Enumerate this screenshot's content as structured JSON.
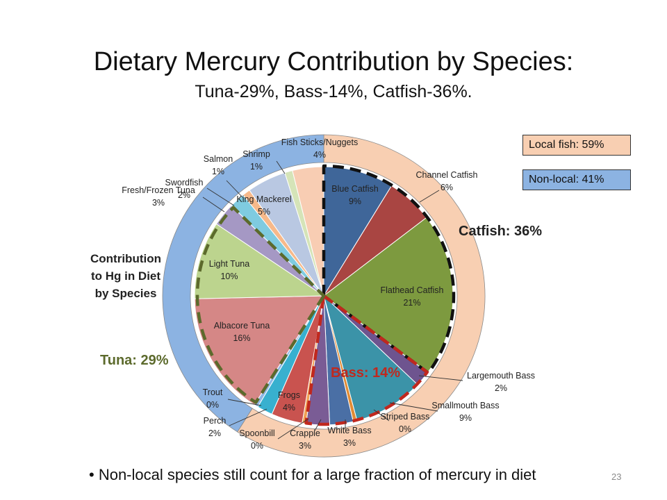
{
  "slide": {
    "title": "Dietary Mercury Contribution by Species:",
    "subtitle": "Tuna-29%, Bass-14%, Catfish-36%.",
    "bullet": "• Non-local species still count for a large fraction of mercury in diet",
    "page_number": "23"
  },
  "legend": {
    "local": "Local fish: 59%",
    "nonlocal": "Non-local: 41%"
  },
  "labels": {
    "side": [
      "Contribution",
      "to Hg in Diet",
      "by Species"
    ],
    "catfish_group": "Catfish: 36%",
    "tuna_group": "Tuna: 29%",
    "bass_group": "Bass: 14%"
  },
  "colors": {
    "local_ring": "#f8cfb2",
    "nonlocal_ring": "#8cb3e2",
    "catfish_outline": "#111111",
    "bass_outline": "#c0281e",
    "tuna_outline": "#5c6a2c"
  },
  "chart_data": {
    "type": "pie",
    "title": "Contribution to Hg in Diet by Species",
    "unit": "%",
    "slices": [
      {
        "name": "Blue Catfish",
        "value": 9,
        "label": "9%",
        "color": "#3f6699",
        "group": "catfish"
      },
      {
        "name": "Channel Catfish",
        "value": 6,
        "label": "6%",
        "color": "#a94542",
        "group": "catfish"
      },
      {
        "name": "Flathead Catfish",
        "value": 21,
        "label": "21%",
        "color": "#7d9a3f",
        "group": "catfish"
      },
      {
        "name": "Largemouth Bass",
        "value": 2,
        "label": "2%",
        "color": "#6e548f",
        "group": "bass"
      },
      {
        "name": "Smallmouth Bass",
        "value": 9,
        "label": "9%",
        "color": "#3b93a8",
        "group": "bass"
      },
      {
        "name": "Striped Bass",
        "value": 0,
        "label": "0%",
        "color": "#e08b35",
        "group": "bass"
      },
      {
        "name": "White Bass",
        "value": 3,
        "label": "3%",
        "color": "#4a6fa5",
        "group": "bass"
      },
      {
        "name": "Crappie",
        "value": 3,
        "label": "3%",
        "color": "#7a5c95",
        "group": "bass"
      },
      {
        "name": "Spoonbill",
        "value": 0,
        "label": "0%",
        "color": "#f0a054",
        "group": "local-other"
      },
      {
        "name": "Frogs",
        "value": 4,
        "label": "4%",
        "color": "#c9534f",
        "group": "local-other"
      },
      {
        "name": "Perch",
        "value": 2,
        "label": "2%",
        "color": "#38b0cf",
        "group": "local-other"
      },
      {
        "name": "Trout",
        "value": 0,
        "label": "0%",
        "color": "#8fb7e5",
        "group": "local-other"
      },
      {
        "name": "Albacore Tuna",
        "value": 16,
        "label": "16%",
        "color": "#d58786",
        "group": "tuna"
      },
      {
        "name": "Light Tuna",
        "value": 10,
        "label": "10%",
        "color": "#bcd48e",
        "group": "tuna"
      },
      {
        "name": "Fresh/Frozen Tuna",
        "value": 3,
        "label": "3%",
        "color": "#a598c4",
        "group": "tuna"
      },
      {
        "name": "Swordfish",
        "value": 2,
        "label": "2%",
        "color": "#7fcbe0",
        "group": "nonlocal-other"
      },
      {
        "name": "Salmon",
        "value": 1,
        "label": "1%",
        "color": "#f7b98a",
        "group": "nonlocal-other"
      },
      {
        "name": "King Mackerel",
        "value": 5,
        "label": "5%",
        "color": "#b9c8e2",
        "group": "nonlocal-other"
      },
      {
        "name": "Shrimp",
        "value": 1,
        "label": "1%",
        "color": "#d5e4b8",
        "group": "nonlocal-other"
      },
      {
        "name": "Fish Sticks/Nuggets",
        "value": 4,
        "label": "4%",
        "color": "#f8cdb3",
        "group": "nonlocal-other"
      }
    ],
    "outer_ring": [
      {
        "name": "Local fish",
        "value": 59
      },
      {
        "name": "Non-local",
        "value": 41
      }
    ],
    "group_totals": {
      "Catfish": 36,
      "Tuna": 29,
      "Bass": 14
    },
    "legend_position": "top-right"
  }
}
